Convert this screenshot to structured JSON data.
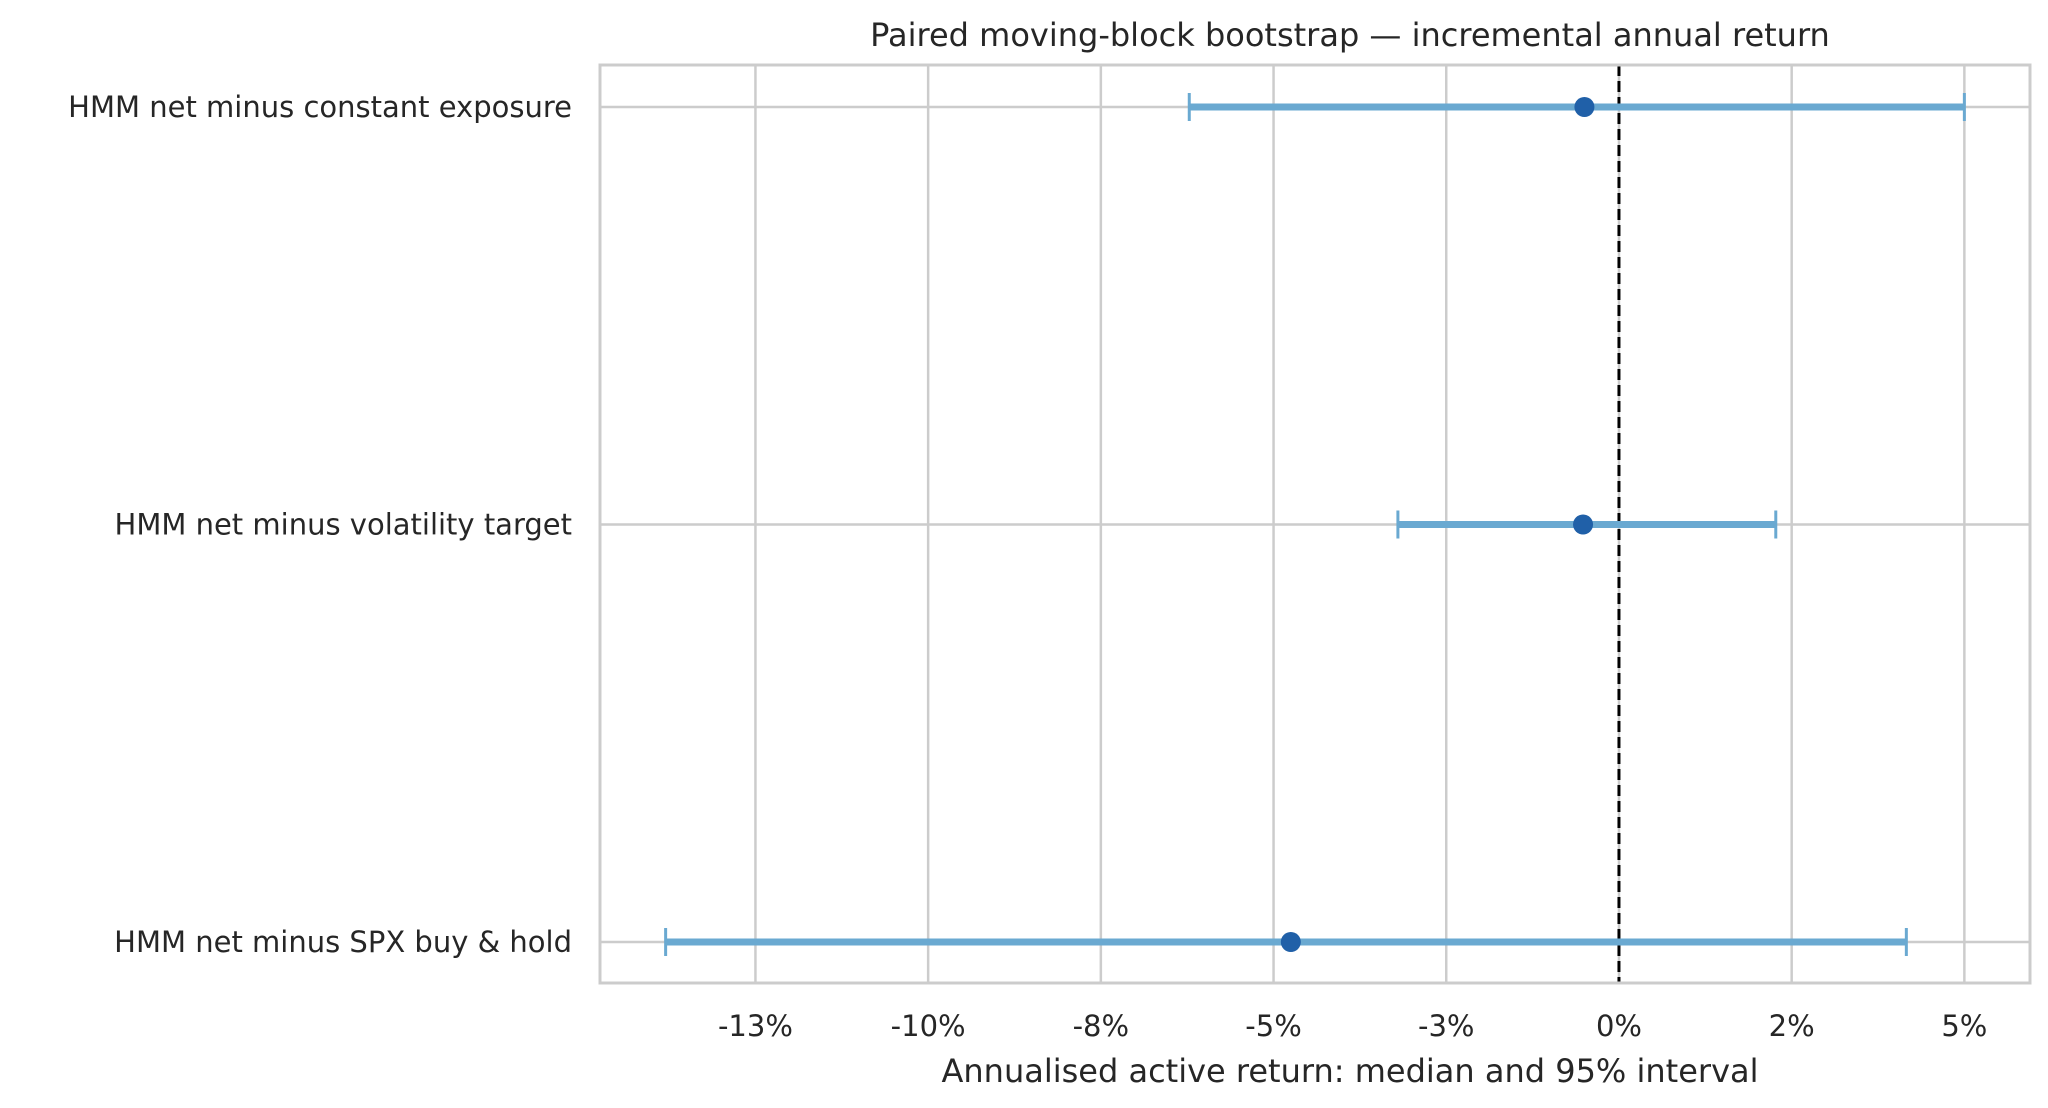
{
  "chart_data": {
    "type": "forest",
    "title": "Paired moving-block bootstrap — incremental annual return",
    "xlabel": "Annualised active return: median and 95% interval",
    "ylabel": "",
    "xlim": [
      -0.1475,
      0.0595
    ],
    "xticks": [
      -0.125,
      -0.1,
      -0.075,
      -0.05,
      -0.025,
      0.0,
      0.025,
      0.05
    ],
    "xtick_labels": [
      "-13%",
      "-10%",
      "-8%",
      "-5%",
      "-3%",
      "0%",
      "2%",
      "5%"
    ],
    "reference_line": 0.0,
    "grid": true,
    "categories": [
      "HMM net minus constant exposure",
      "HMM net minus volatility target",
      "HMM net minus SPX buy & hold"
    ],
    "median": [
      -0.005,
      -0.0052,
      -0.0475
    ],
    "lower": [
      -0.0622,
      -0.032,
      -0.138
    ],
    "upper": [
      0.05,
      0.0227,
      0.0416
    ],
    "colors": {
      "interval": "#6aa9d1",
      "median": "#2060a8",
      "reference": "#000000",
      "grid": "#cccccc"
    }
  }
}
